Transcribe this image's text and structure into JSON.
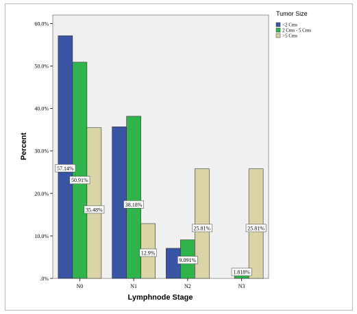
{
  "chart_data": {
    "type": "bar",
    "title": "",
    "xlabel": "Lymphnode Stage",
    "ylabel": "Percent",
    "ylim": [
      0,
      62
    ],
    "yticks": [
      0,
      10,
      20,
      30,
      40,
      50,
      60
    ],
    "ytick_labels": [
      ".0%",
      "10.0%",
      "20.0%",
      "30.0%",
      "40.0%",
      "50.0%",
      "60.0%"
    ],
    "categories": [
      "N0",
      "N1",
      "N2",
      "N3"
    ],
    "legend_title": "Tumor Size",
    "legend_position": "right",
    "grid": false,
    "series": [
      {
        "name": "<2 Cms",
        "color": "#3a54a4",
        "values": [
          57.14,
          35.7,
          7.1,
          0
        ],
        "labels": [
          "57.14%",
          null,
          null,
          null
        ]
      },
      {
        "name": "2 Cms - 5 Cms",
        "color": "#2fb34a",
        "values": [
          50.91,
          38.18,
          9.091,
          1.818
        ],
        "labels": [
          "50.91%",
          "38.18%",
          "9.091%",
          "1.818%"
        ]
      },
      {
        "name": ">5 Cms",
        "color": "#d9d3a6",
        "values": [
          35.48,
          12.9,
          25.81,
          25.81
        ],
        "labels": [
          "35.48%",
          "12.9%",
          "25.81%",
          "25.81%"
        ]
      }
    ]
  }
}
